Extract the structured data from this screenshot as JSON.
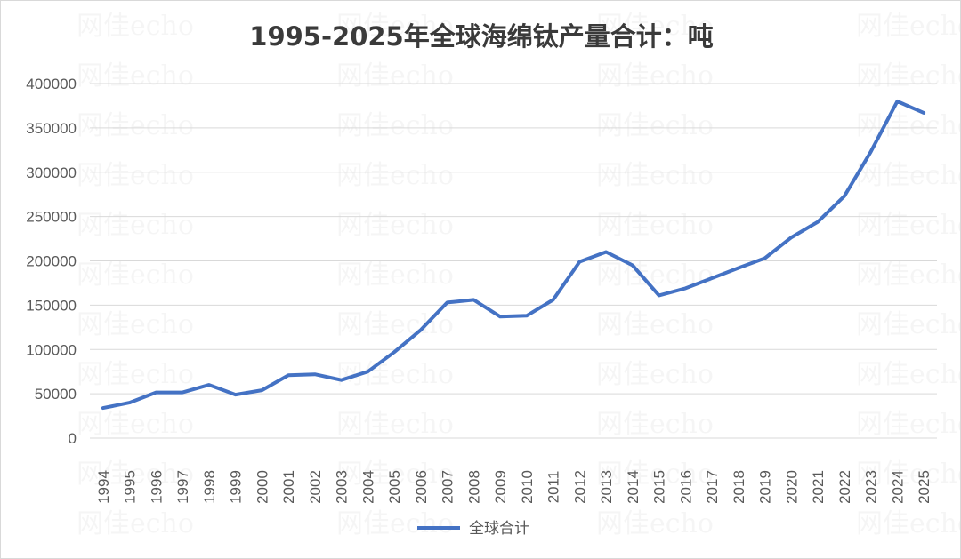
{
  "watermark_text": "网佳echo",
  "chart_data": {
    "type": "line",
    "title": "1995-2025年全球海绵钛产量合计：吨",
    "xlabel": "",
    "ylabel": "",
    "categories": [
      "1994",
      "1995",
      "1996",
      "1997",
      "1998",
      "1999",
      "2000",
      "2001",
      "2002",
      "2003",
      "2004",
      "2005",
      "2006",
      "2007",
      "2008",
      "2009",
      "2010",
      "2011",
      "2012",
      "2013",
      "2014",
      "2015",
      "2016",
      "2017",
      "2018",
      "2019",
      "2020",
      "2021",
      "2022",
      "2023",
      "2024",
      "2025"
    ],
    "series": [
      {
        "name": "全球合计",
        "color": "#4472c4",
        "values": [
          34000,
          40000,
          51500,
          51500,
          60000,
          49000,
          54000,
          71000,
          72000,
          65500,
          75000,
          97000,
          122000,
          153000,
          156000,
          137000,
          138000,
          156000,
          199000,
          210000,
          195000,
          161000,
          169000,
          180500,
          192000,
          203000,
          226500,
          244000,
          273000,
          323000,
          380000,
          367000
        ]
      }
    ],
    "ylim": [
      0,
      400000
    ],
    "yticks": [
      0,
      50000,
      100000,
      150000,
      200000,
      250000,
      300000,
      350000,
      400000
    ],
    "grid": true,
    "legend_position": "bottom"
  }
}
